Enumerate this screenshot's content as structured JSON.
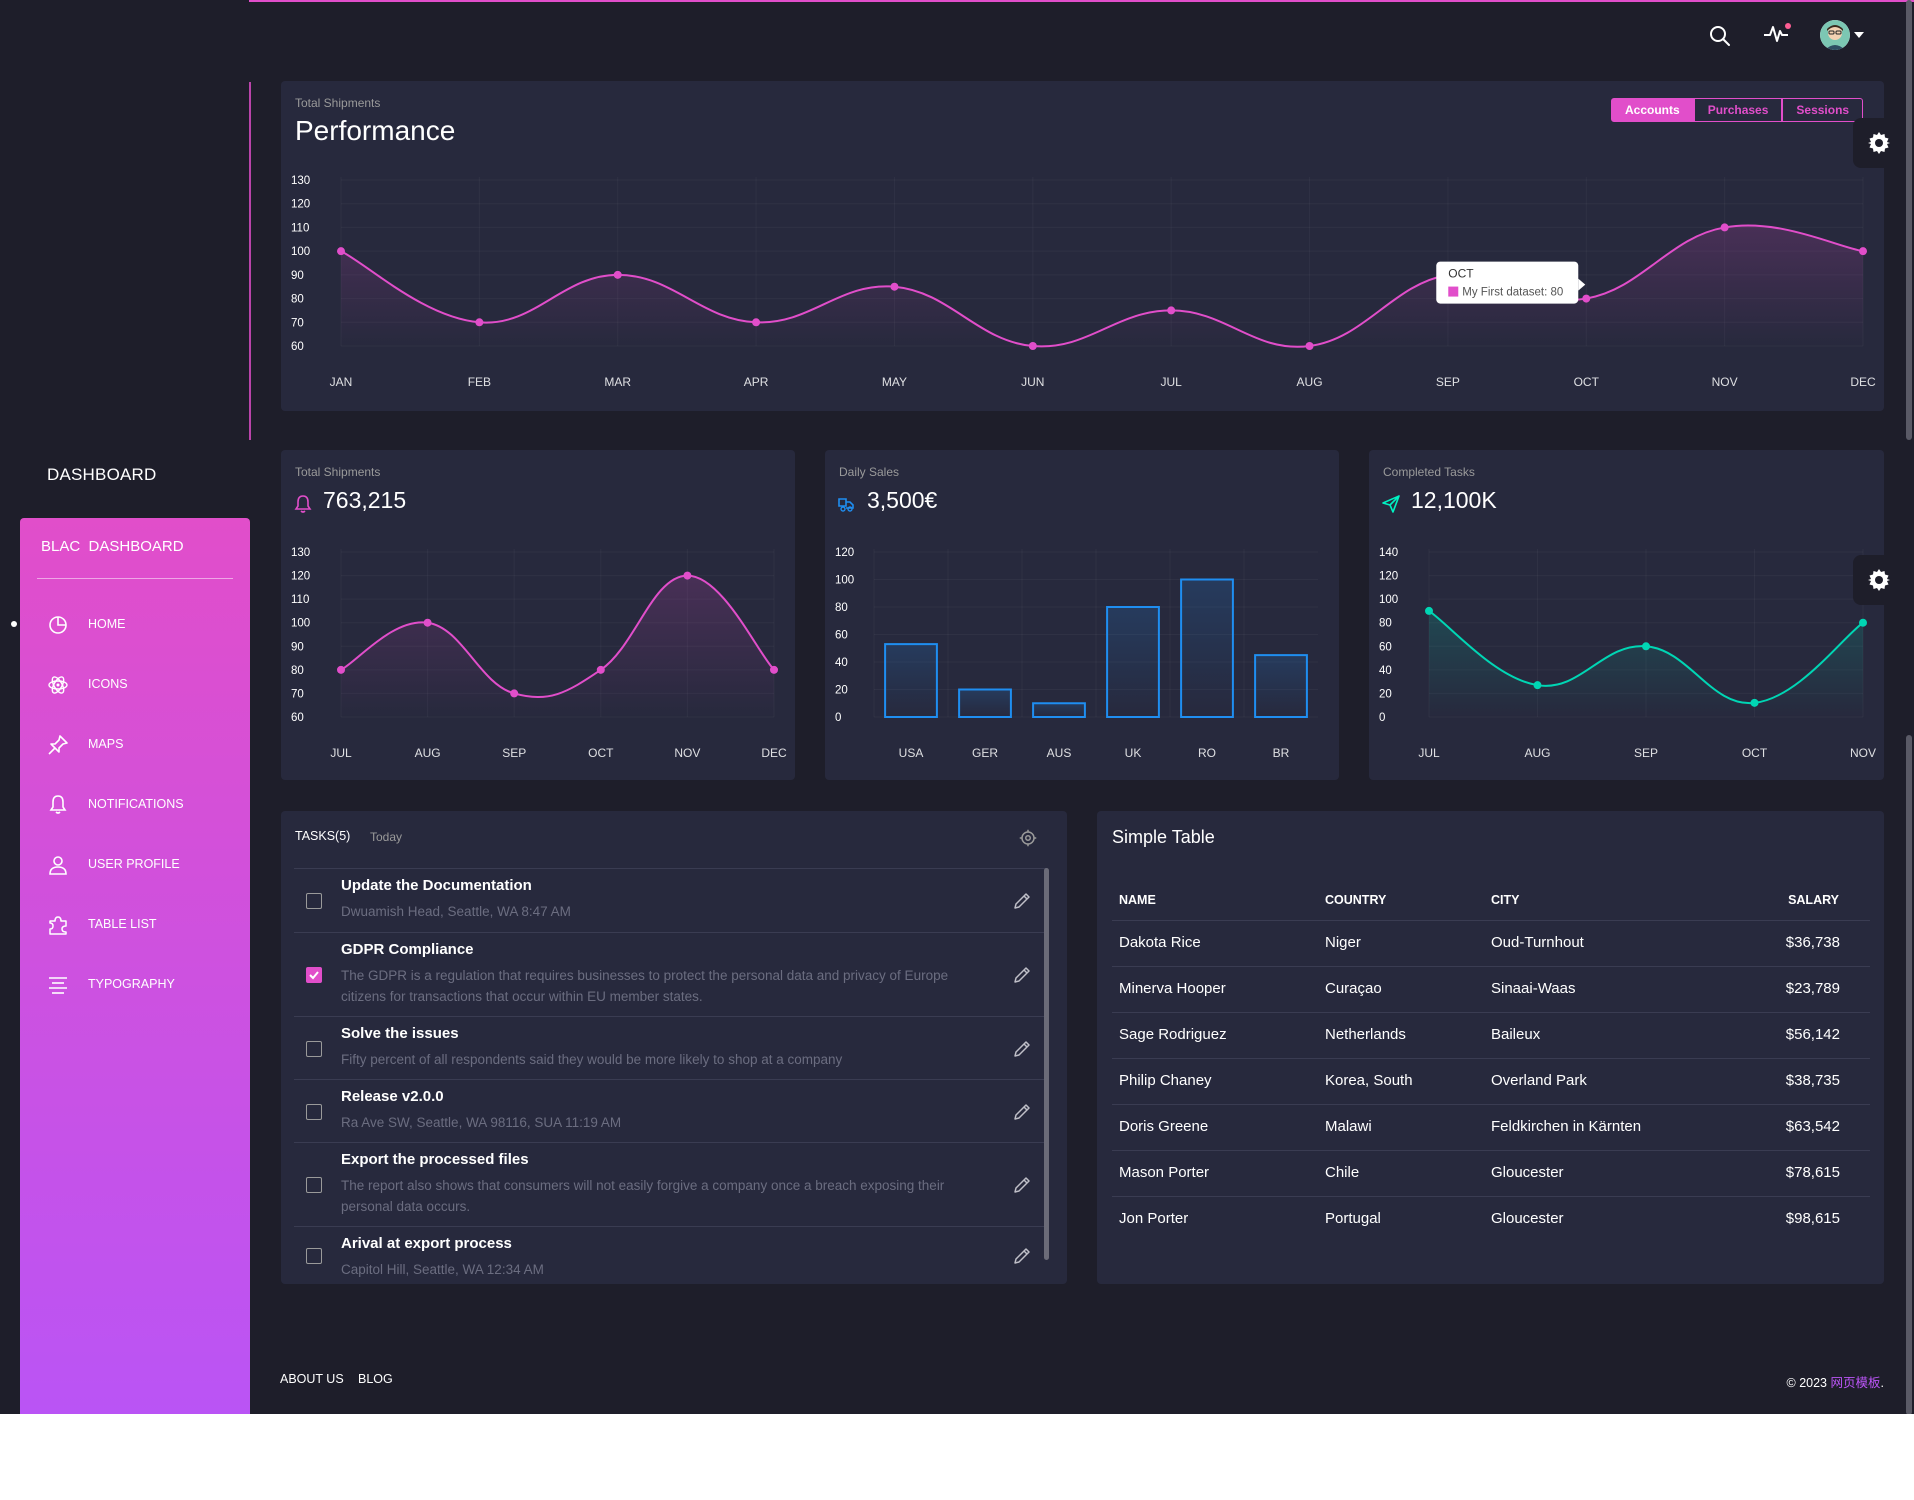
{
  "header": {
    "icons": [
      "search-icon",
      "activity-icon",
      "avatar",
      "caret-down-icon"
    ],
    "notification_color": "#fd5d93"
  },
  "sidebar": {
    "title": "DASHBOARD",
    "brand_short": "BLAC",
    "brand_full": "DASHBOARD",
    "items": [
      {
        "label": "Home",
        "icon": "chart-pie-icon",
        "active": true
      },
      {
        "label": "Icons",
        "icon": "atom-icon",
        "active": false
      },
      {
        "label": "Maps",
        "icon": "pin-icon",
        "active": false
      },
      {
        "label": "Notifications",
        "icon": "bell-icon",
        "active": false
      },
      {
        "label": "User Profile",
        "icon": "user-icon",
        "active": false
      },
      {
        "label": "Table List",
        "icon": "puzzle-icon",
        "active": false
      },
      {
        "label": "Typography",
        "icon": "align-center-icon",
        "active": false
      }
    ]
  },
  "main_chart": {
    "category": "Total Shipments",
    "title": "Performance",
    "tabs": [
      "Accounts",
      "Purchases",
      "Sessions"
    ],
    "active_tab": "Accounts",
    "tooltip": {
      "title": "OCT",
      "label": "My First dataset: 80"
    }
  },
  "small_cards": [
    {
      "category": "Total Shipments",
      "value": "763,215",
      "icon": "bell-icon",
      "icon_color": "#e14eca"
    },
    {
      "category": "Daily Sales",
      "value": "3,500€",
      "icon": "delivery-icon",
      "icon_color": "#1f8ef1"
    },
    {
      "category": "Completed Tasks",
      "value": "12,100K",
      "icon": "send-icon",
      "icon_color": "#00f2c3"
    }
  ],
  "chart_data": [
    {
      "type": "line",
      "categories": [
        "JAN",
        "FEB",
        "MAR",
        "APR",
        "MAY",
        "JUN",
        "JUL",
        "AUG",
        "SEP",
        "OCT",
        "NOV",
        "DEC"
      ],
      "series": [
        {
          "name": "My First dataset",
          "values": [
            100,
            70,
            90,
            70,
            85,
            60,
            75,
            60,
            90,
            80,
            110,
            100
          ]
        }
      ],
      "yticks": [
        60,
        70,
        80,
        90,
        100,
        110,
        120,
        130
      ],
      "ylim": [
        60,
        130
      ],
      "color": "#e14eca",
      "grid": true
    },
    {
      "type": "line",
      "categories": [
        "JUL",
        "AUG",
        "SEP",
        "OCT",
        "NOV",
        "DEC"
      ],
      "values": [
        80,
        100,
        70,
        80,
        120,
        80
      ],
      "yticks": [
        60,
        70,
        80,
        90,
        100,
        110,
        120,
        130
      ],
      "ylim": [
        60,
        130
      ],
      "color": "#e14eca",
      "grid": true
    },
    {
      "type": "bar",
      "categories": [
        "USA",
        "GER",
        "AUS",
        "UK",
        "RO",
        "BR"
      ],
      "values": [
        53,
        20,
        10,
        80,
        100,
        45
      ],
      "yticks": [
        0,
        20,
        40,
        60,
        80,
        100,
        120
      ],
      "ylim": [
        0,
        120
      ],
      "color": "#1f8ef1",
      "grid": true
    },
    {
      "type": "line",
      "categories": [
        "JUL",
        "AUG",
        "SEP",
        "OCT",
        "NOV"
      ],
      "values": [
        90,
        27,
        60,
        12,
        80
      ],
      "yticks": [
        0,
        20,
        40,
        60,
        80,
        100,
        120,
        140
      ],
      "ylim": [
        0,
        140
      ],
      "color": "#00d6b4",
      "grid": true
    }
  ],
  "tasks": {
    "title": "TASKS(5)",
    "subtitle": "Today",
    "items": [
      {
        "title": "Update the Documentation",
        "desc": "Dwuamish Head, Seattle, WA 8:47 AM",
        "checked": false
      },
      {
        "title": "GDPR Compliance",
        "desc": "The GDPR is a regulation that requires businesses to protect the personal data and privacy of Europe citizens for transactions that occur within EU member states.",
        "checked": true
      },
      {
        "title": "Solve the issues",
        "desc": "Fifty percent of all respondents said they would be more likely to shop at a company",
        "checked": false
      },
      {
        "title": "Release v2.0.0",
        "desc": "Ra Ave SW, Seattle, WA 98116, SUA 11:19 AM",
        "checked": false
      },
      {
        "title": "Export the processed files",
        "desc": "The report also shows that consumers will not easily forgive a company once a breach exposing their personal data occurs.",
        "checked": false
      },
      {
        "title": "Arival at export process",
        "desc": "Capitol Hill, Seattle, WA 12:34 AM",
        "checked": false
      }
    ]
  },
  "table": {
    "title": "Simple Table",
    "headers": [
      "Name",
      "Country",
      "City",
      "Salary"
    ],
    "rows": [
      [
        "Dakota Rice",
        "Niger",
        "Oud-Turnhout",
        "$36,738"
      ],
      [
        "Minerva Hooper",
        "Curaçao",
        "Sinaai-Waas",
        "$23,789"
      ],
      [
        "Sage Rodriguez",
        "Netherlands",
        "Baileux",
        "$56,142"
      ],
      [
        "Philip Chaney",
        "Korea, South",
        "Overland Park",
        "$38,735"
      ],
      [
        "Doris Greene",
        "Malawi",
        "Feldkirchen in Kärnten",
        "$63,542"
      ],
      [
        "Mason Porter",
        "Chile",
        "Gloucester",
        "$78,615"
      ],
      [
        "Jon Porter",
        "Portugal",
        "Gloucester",
        "$98,615"
      ]
    ]
  },
  "footer": {
    "links": [
      "About Us",
      "Blog"
    ],
    "copyright": "© 2023",
    "brand_link": "网页模板",
    "suffix": "."
  }
}
